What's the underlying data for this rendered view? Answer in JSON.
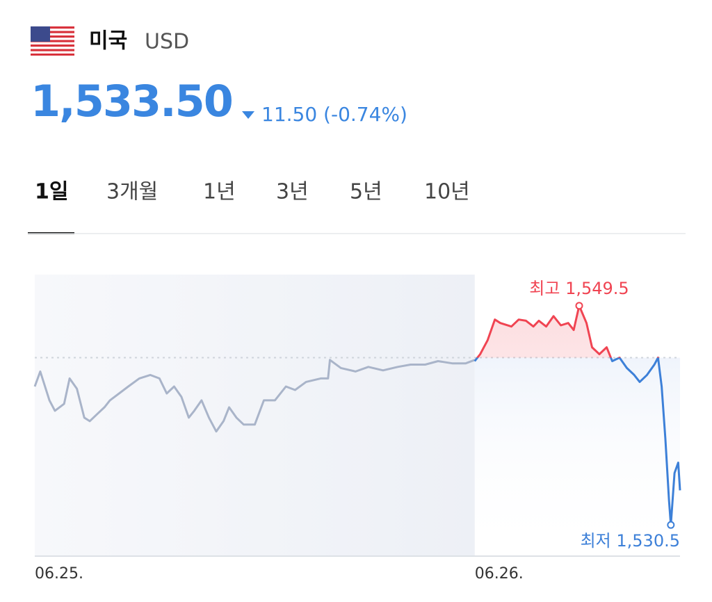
{
  "header": {
    "country": "미국",
    "currency": "USD",
    "price": "1,533.50",
    "change": "11.50 (-0.74%)"
  },
  "tabs": [
    "1일",
    "3개월",
    "1년",
    "3년",
    "5년",
    "10년"
  ],
  "active_tab": 0,
  "chart_data": {
    "type": "line",
    "xlim": [
      0,
      35.2
    ],
    "ylim": [
      1527.8,
      1552.2
    ],
    "xticks": [
      {
        "value": 0,
        "label": "06.25."
      },
      {
        "value": 24,
        "label": "06.26."
      }
    ],
    "baseline": 1545,
    "series": [
      {
        "color": "#a9b4c9",
        "x": [
          0,
          0.3,
          0.8,
          1.1,
          1.6,
          1.9,
          2.3,
          2.7,
          3.0,
          3.4,
          3.8,
          4.1,
          4.6,
          5.1,
          5.7,
          6.3,
          6.8,
          7.2,
          7.6,
          8.0,
          8.4,
          8.7,
          9.1,
          9.5,
          9.9,
          10.3,
          10.6,
          11.0,
          11.4,
          12.0,
          12.5,
          13.1,
          13.7,
          14.2,
          14.8,
          15.6,
          16.0,
          16.1,
          16.7,
          17.5,
          18.2,
          19.0,
          19.8,
          20.5,
          21.3,
          22.0,
          22.8,
          23.5,
          24.0
        ],
        "values": [
          1542.5,
          1543.8,
          1541.3,
          1540.4,
          1541.0,
          1543.2,
          1542.3,
          1539.8,
          1539.5,
          1540.1,
          1540.7,
          1541.3,
          1541.9,
          1542.5,
          1543.2,
          1543.5,
          1543.2,
          1541.9,
          1542.5,
          1541.6,
          1539.8,
          1540.4,
          1541.3,
          1539.8,
          1538.6,
          1539.5,
          1540.7,
          1539.8,
          1539.2,
          1539.2,
          1541.3,
          1541.3,
          1542.5,
          1542.2,
          1542.9,
          1543.2,
          1543.2,
          1544.8,
          1544.1,
          1543.8,
          1544.2,
          1543.9,
          1544.2,
          1544.4,
          1544.4,
          1544.7,
          1544.5,
          1544.5,
          1544.8
        ]
      },
      {
        "color": "#f04452",
        "down_color": "#3d80d8",
        "x": [
          24.0,
          24.3,
          24.7,
          25.1,
          25.4,
          26.0,
          26.4,
          26.8,
          27.2,
          27.5,
          27.9,
          28.3,
          28.7,
          29.1,
          29.4,
          29.7,
          30.1,
          30.4,
          30.8,
          31.2,
          31.5,
          31.9,
          32.3,
          32.7,
          33.0,
          33.4,
          33.8,
          34.0,
          34.2,
          34.4,
          34.6,
          34.7,
          34.9,
          35.1,
          35.2
        ],
        "values": [
          1544.7,
          1545.3,
          1546.5,
          1548.3,
          1548.0,
          1547.7,
          1548.3,
          1548.2,
          1547.7,
          1548.2,
          1547.7,
          1548.6,
          1547.8,
          1548.0,
          1547.4,
          1549.5,
          1548.0,
          1545.9,
          1545.3,
          1545.9,
          1544.7,
          1545.0,
          1544.1,
          1543.5,
          1542.9,
          1543.5,
          1544.4,
          1545.0,
          1542.5,
          1538.0,
          1532.6,
          1530.5,
          1535.0,
          1535.9,
          1533.5
        ]
      }
    ],
    "annotations": [
      {
        "text": "최고 1,549.5",
        "x": 29.7,
        "y": 1549.5,
        "color": "#f04452"
      },
      {
        "text": "최저 1,530.5",
        "x": 34.7,
        "y": 1530.5,
        "color": "#3d80d8"
      }
    ]
  }
}
